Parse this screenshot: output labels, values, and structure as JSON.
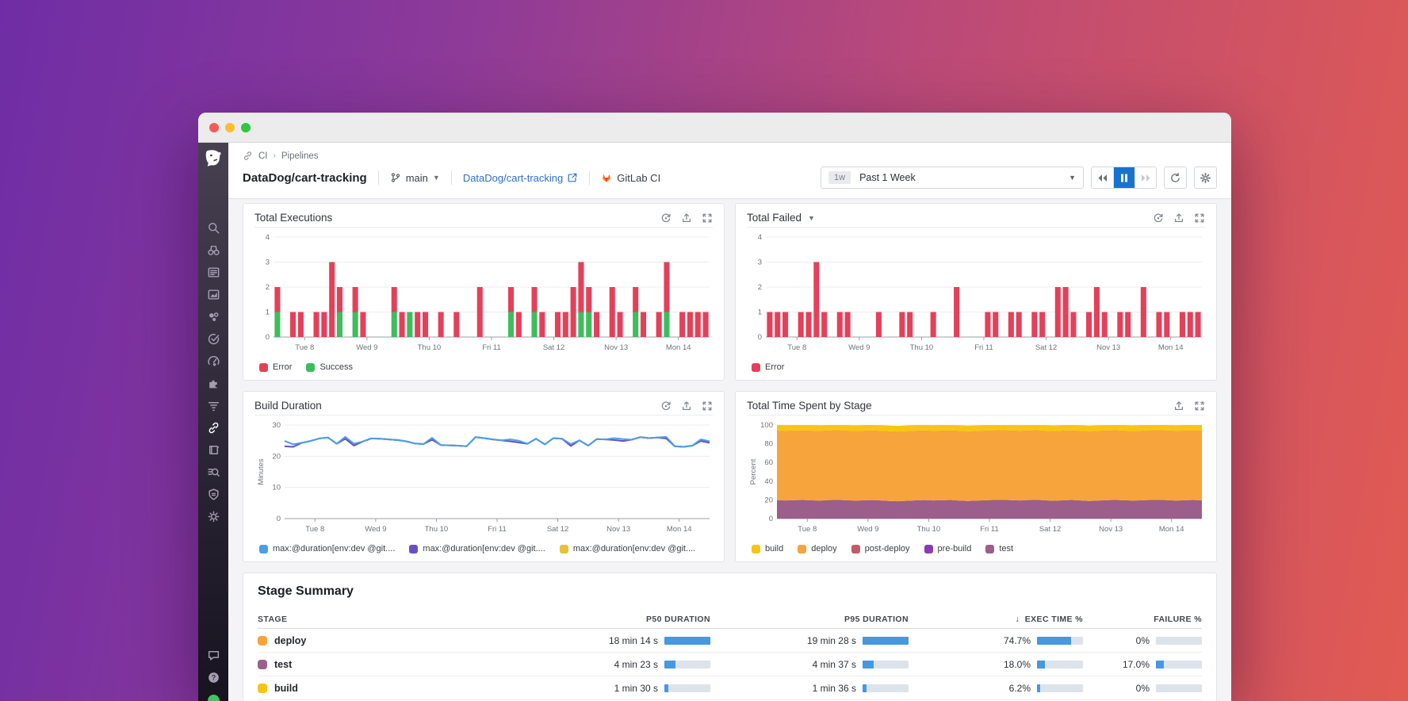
{
  "window": {
    "traffic_lights": [
      "#f85b57",
      "#fdbc2e",
      "#2bc840"
    ]
  },
  "sidebar": {
    "items": [
      "datadog-logo",
      "search",
      "watchdog",
      "events",
      "metrics",
      "infrastructure",
      "monitors",
      "apm",
      "integrations",
      "logs",
      "ci-pipelines",
      "notebooks",
      "log-explorer",
      "security",
      "threat-monitoring",
      "chat",
      "help",
      "user-status"
    ],
    "active_item": "ci-pipelines"
  },
  "breadcrumb": {
    "crumbs": [
      "CI",
      "Pipelines"
    ]
  },
  "header": {
    "title": "DataDog/cart-tracking",
    "branch": "main",
    "repo_link": "DataDog/cart-tracking",
    "provider": "GitLab CI",
    "time_range": {
      "badge": "1w",
      "label": "Past 1 Week"
    },
    "playback": [
      "rewind",
      "pause",
      "fast-forward"
    ],
    "buttons": [
      "refresh",
      "settings"
    ]
  },
  "chart_data": [
    {
      "type": "bar",
      "title": "Total Executions",
      "header_icons": [
        "target-icon",
        "export-icon",
        "fullscreen-icon"
      ],
      "categories": [
        "Tue 8",
        "Wed 9",
        "Thu 10",
        "Fri 11",
        "Sat 12",
        "Nov 13",
        "Mon 14"
      ],
      "ylim": [
        0,
        4
      ],
      "yticks": [
        0,
        1,
        2,
        3,
        4
      ],
      "series": [
        {
          "name": "Error",
          "color": "#e5405a",
          "values": [
            1,
            0,
            1,
            1,
            0,
            1,
            1,
            3,
            1,
            0,
            1,
            1,
            0,
            0,
            0,
            1,
            1,
            0,
            1,
            1,
            0,
            1,
            0,
            1,
            0,
            0,
            2,
            0,
            0,
            0,
            1,
            1,
            0,
            1,
            1,
            0,
            1,
            1,
            2,
            2,
            1,
            1,
            0,
            2,
            1,
            0,
            1,
            1,
            0,
            1,
            2,
            0,
            1,
            1,
            1,
            1
          ]
        },
        {
          "name": "Success",
          "color": "#3ebd5d",
          "values": [
            1,
            0,
            0,
            0,
            0,
            0,
            0,
            0,
            1,
            0,
            1,
            0,
            0,
            0,
            0,
            1,
            0,
            1,
            0,
            0,
            0,
            0,
            0,
            0,
            0,
            0,
            0,
            0,
            0,
            0,
            1,
            0,
            0,
            1,
            0,
            0,
            0,
            0,
            0,
            1,
            1,
            0,
            0,
            0,
            0,
            0,
            1,
            0,
            0,
            0,
            1,
            0,
            0,
            0,
            0,
            0
          ]
        }
      ]
    },
    {
      "type": "bar",
      "title": "Total Failed",
      "has_dropdown": true,
      "header_icons": [
        "target-icon",
        "export-icon",
        "fullscreen-icon"
      ],
      "categories": [
        "Tue 8",
        "Wed 9",
        "Thu 10",
        "Fri 11",
        "Sat 12",
        "Nov 13",
        "Mon 14"
      ],
      "ylim": [
        0,
        4
      ],
      "yticks": [
        0,
        1,
        2,
        3,
        4
      ],
      "series": [
        {
          "name": "Error",
          "color": "#e5405a",
          "values": [
            1,
            1,
            1,
            0,
            1,
            1,
            3,
            1,
            0,
            1,
            1,
            0,
            0,
            0,
            1,
            0,
            0,
            1,
            1,
            0,
            0,
            1,
            0,
            0,
            2,
            0,
            0,
            0,
            1,
            1,
            0,
            1,
            1,
            0,
            1,
            1,
            0,
            2,
            2,
            1,
            0,
            1,
            2,
            1,
            0,
            1,
            1,
            0,
            2,
            0,
            1,
            1,
            0,
            1,
            1,
            1
          ]
        }
      ]
    },
    {
      "type": "line",
      "title": "Build Duration",
      "header_icons": [
        "target-icon",
        "export-icon",
        "fullscreen-icon"
      ],
      "categories": [
        "Tue 8",
        "Wed 9",
        "Thu 10",
        "Fri 11",
        "Sat 12",
        "Nov 13",
        "Mon 14"
      ],
      "ylabel": "Minutes",
      "ylim": [
        0,
        30
      ],
      "yticks": [
        0,
        10,
        20,
        30
      ],
      "series": [
        {
          "name": "max:@duration[env:dev @git....",
          "color": "#4a9fe8",
          "values": [
            24.9,
            23.8,
            24.3,
            24.9,
            25.7,
            26.0,
            24.0,
            26.2,
            24.0,
            24.7,
            25.7,
            25.6,
            25.4,
            25.2,
            24.8,
            24.1,
            23.9,
            25.9,
            23.6,
            23.5,
            23.4,
            23.2,
            26.1,
            25.8,
            25.4,
            25.1,
            25.4,
            25.0,
            24.0,
            25.6,
            23.8,
            25.8,
            25.6,
            23.9,
            25.1,
            23.4,
            25.5,
            25.4,
            25.8,
            25.5,
            25.3,
            26.1,
            25.8,
            26.0,
            26.2,
            23.2,
            23.0,
            23.4,
            25.4,
            24.8
          ]
        },
        {
          "name": "max:@duration[env:dev @git....",
          "color": "#6a4fc7",
          "values": [
            23.2,
            23.0,
            24.3,
            24.9,
            25.7,
            26.0,
            24.0,
            25.6,
            23.4,
            24.7,
            25.7,
            25.6,
            25.4,
            25.2,
            24.8,
            24.1,
            23.9,
            25.3,
            23.6,
            23.5,
            23.4,
            23.2,
            26.1,
            25.8,
            25.4,
            25.1,
            24.8,
            24.4,
            24.0,
            25.6,
            23.8,
            25.8,
            25.6,
            23.3,
            25.1,
            23.4,
            25.5,
            25.4,
            25.2,
            24.9,
            25.3,
            26.1,
            25.8,
            26.0,
            25.7,
            23.2,
            23.0,
            23.4,
            24.9,
            24.3
          ]
        },
        {
          "name": "max:@duration[env:dev @git....",
          "color": "#e8c03a",
          "values": [
            23.2,
            23.0,
            24.3,
            24.9,
            25.7,
            26.0,
            24.0,
            25.6,
            23.4,
            24.7,
            25.7,
            25.6,
            25.4,
            25.2,
            24.8,
            24.1,
            23.9,
            25.3,
            23.6,
            23.5,
            23.4,
            23.2,
            26.1,
            25.8,
            25.4,
            25.1,
            24.8,
            24.4,
            24.0,
            25.6,
            23.8,
            25.8,
            25.6,
            23.3,
            25.1,
            23.4,
            25.5,
            25.4,
            25.2,
            24.9,
            25.3,
            26.1,
            25.8,
            26.0,
            25.7,
            23.2,
            23.0,
            23.4,
            24.9,
            24.3
          ]
        }
      ]
    },
    {
      "type": "area",
      "title": "Total Time Spent by Stage",
      "header_icons": [
        "export-icon",
        "fullscreen-icon"
      ],
      "categories": [
        "Tue 8",
        "Wed 9",
        "Thu 10",
        "Fri 11",
        "Sat 12",
        "Nov 13",
        "Mon 14"
      ],
      "ylabel": "Percent",
      "ylim": [
        0,
        100
      ],
      "yticks": [
        0,
        20,
        40,
        60,
        80,
        100
      ],
      "draw_stack": [
        "test",
        "deploy",
        "build"
      ],
      "series": [
        {
          "name": "build",
          "color": "#f8c510",
          "values": 6
        },
        {
          "name": "deploy",
          "color": "#f6a43b",
          "values": 74.5
        },
        {
          "name": "post-deploy",
          "color": "#c25b68",
          "values": 0
        },
        {
          "name": "pre-build",
          "color": "#8a3ab4",
          "values": 0
        },
        {
          "name": "test",
          "color": "#9c5e8b",
          "values": [
            19.6,
            19.4,
            19.7,
            19.9,
            19.5,
            19.3,
            19.8,
            20.0,
            19.6,
            19.2,
            19.5,
            19.8,
            19.4,
            18.9,
            18.6,
            19.1,
            19.5,
            19.8,
            19.4,
            19.6,
            19.9,
            19.3,
            18.8,
            19.2,
            19.6,
            19.9,
            20.1,
            19.7,
            19.4,
            19.8,
            20.0,
            19.5,
            19.1,
            19.6,
            19.9,
            19.4,
            18.9,
            19.3,
            19.7,
            20.0,
            19.6,
            19.2,
            19.5,
            19.9,
            20.2,
            19.7,
            19.3,
            19.6,
            19.9,
            19.5
          ]
        }
      ]
    }
  ],
  "stage_summary": {
    "title": "Stage Summary",
    "columns": [
      {
        "label": "STAGE"
      },
      {
        "label": "P50 DURATION"
      },
      {
        "label": "P95 DURATION"
      },
      {
        "label": "EXEC TIME %",
        "sorted": "desc"
      },
      {
        "label": "FAILURE %"
      }
    ],
    "rows": [
      {
        "stage": "deploy",
        "color": "#f6a43b",
        "p50": {
          "text": "18 min 14 s",
          "pct": 100
        },
        "p95": {
          "text": "19 min 28 s",
          "pct": 100
        },
        "exec": {
          "text": "74.7%",
          "pct": 74.7
        },
        "failure": {
          "text": "0%",
          "pct": 0
        }
      },
      {
        "stage": "test",
        "color": "#9c5e8b",
        "p50": {
          "text": "4 min 23 s",
          "pct": 24
        },
        "p95": {
          "text": "4 min 37 s",
          "pct": 24
        },
        "exec": {
          "text": "18.0%",
          "pct": 18
        },
        "failure": {
          "text": "17.0%",
          "pct": 17
        }
      },
      {
        "stage": "build",
        "color": "#f8c510",
        "p50": {
          "text": "1 min 30 s",
          "pct": 8
        },
        "p95": {
          "text": "1 min 36 s",
          "pct": 8
        },
        "exec": {
          "text": "6.2%",
          "pct": 6.2
        },
        "failure": {
          "text": "0%",
          "pct": 0
        }
      }
    ]
  },
  "colors": {
    "accent_blue": "#1673d2",
    "bar_blue": "#4598e2",
    "link_blue": "#2e6fc7",
    "gitlab_orange": "#fc6d26"
  }
}
